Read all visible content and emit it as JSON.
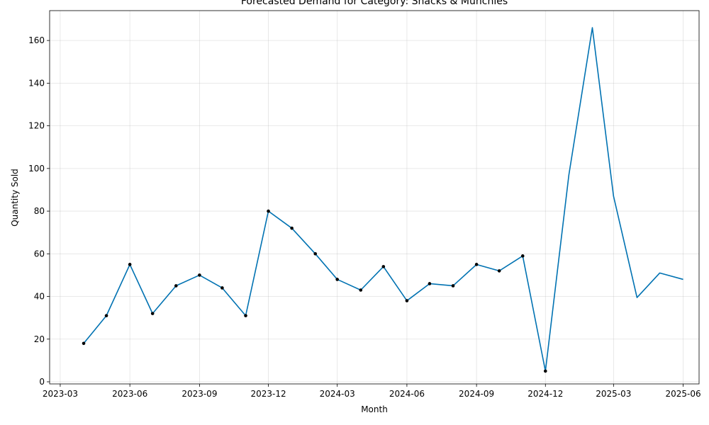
{
  "chart_data": {
    "type": "line",
    "title": "Forecasted Demand for Category: Snacks & Munchies",
    "xlabel": "Month",
    "ylabel": "Quantity Sold",
    "xlim": [
      "2023-02-15",
      "2025-06-22"
    ],
    "ylim": [
      -1,
      174
    ],
    "x_ticks": [
      "2023-03",
      "2023-06",
      "2023-09",
      "2023-12",
      "2024-03",
      "2024-06",
      "2024-09",
      "2024-12",
      "2025-03",
      "2025-06"
    ],
    "y_ticks": [
      0,
      20,
      40,
      60,
      80,
      100,
      120,
      140,
      160
    ],
    "grid": true,
    "line_color": "#0072B2",
    "marker_color": "#000000",
    "series": [
      {
        "points": [
          {
            "x": "2023-04-01",
            "y": 18
          },
          {
            "x": "2023-05-01",
            "y": 31
          },
          {
            "x": "2023-06-01",
            "y": 55
          },
          {
            "x": "2023-07-01",
            "y": 32
          },
          {
            "x": "2023-08-01",
            "y": 45
          },
          {
            "x": "2023-09-01",
            "y": 50
          },
          {
            "x": "2023-10-01",
            "y": 44
          },
          {
            "x": "2023-11-01",
            "y": 31
          },
          {
            "x": "2023-12-01",
            "y": 80
          },
          {
            "x": "2024-01-01",
            "y": 72
          },
          {
            "x": "2024-02-01",
            "y": 60
          },
          {
            "x": "2024-03-01",
            "y": 48
          },
          {
            "x": "2024-04-01",
            "y": 43
          },
          {
            "x": "2024-05-01",
            "y": 54
          },
          {
            "x": "2024-06-01",
            "y": 38
          },
          {
            "x": "2024-07-01",
            "y": 46
          },
          {
            "x": "2024-08-01",
            "y": 45
          },
          {
            "x": "2024-09-01",
            "y": 55
          },
          {
            "x": "2024-10-01",
            "y": 52
          },
          {
            "x": "2024-11-01",
            "y": 59
          },
          {
            "x": "2024-12-01",
            "y": 5
          }
        ],
        "marker": true
      },
      {
        "points": [
          {
            "x": "2024-12-01",
            "y": 5
          },
          {
            "x": "2025-01-01",
            "y": 97
          },
          {
            "x": "2025-02-01",
            "y": 166
          },
          {
            "x": "2025-03-01",
            "y": 87
          },
          {
            "x": "2025-04-01",
            "y": 39.5
          },
          {
            "x": "2025-05-01",
            "y": 51
          },
          {
            "x": "2025-06-01",
            "y": 48
          }
        ],
        "marker": false
      }
    ]
  }
}
